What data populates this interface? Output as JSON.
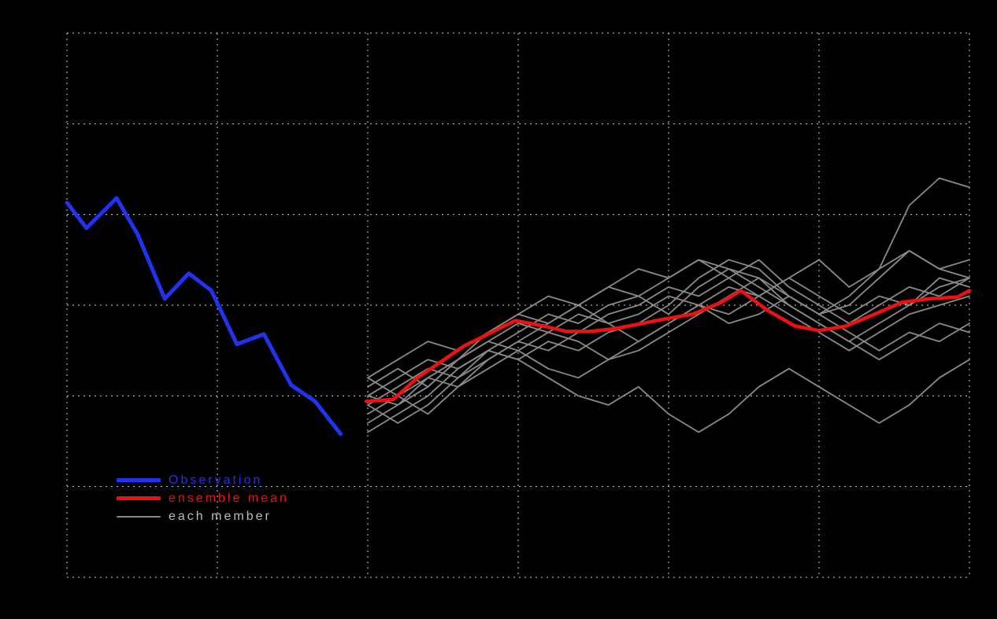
{
  "page": {
    "background": "#000000"
  },
  "chart_data": {
    "type": "line",
    "title": "",
    "xlabel": "",
    "ylabel": "",
    "xlim": [
      0,
      6
    ],
    "ylim": [
      0,
      6
    ],
    "grid": "on",
    "grid_style": "dotted",
    "grid_color": "#cfcfcf",
    "background": "#000000",
    "x_gridlines": [
      0,
      1,
      2,
      3,
      4,
      5,
      6
    ],
    "y_gridlines": [
      0,
      1,
      2,
      3,
      4,
      5,
      6
    ],
    "legend_position": "lower-left-inside",
    "legend": [
      {
        "label": "Observation",
        "line_color": "#2233ee",
        "text_color": "#2233ee",
        "line_width": 5
      },
      {
        "label": "ensemble mean",
        "line_color": "#ee1111",
        "text_color": "#ee1111",
        "line_width": 5
      },
      {
        "label": "each member",
        "line_color": "#8a8a8a",
        "text_color": "#bdbdbd",
        "line_width": 2
      }
    ],
    "observation": {
      "name": "Observation",
      "color": "#2233ee",
      "width": 5,
      "x": [
        0,
        0.13,
        0.33,
        0.47,
        0.65,
        0.81,
        0.96,
        1.13,
        1.31,
        1.49,
        1.65,
        1.82
      ],
      "y": [
        4.13,
        3.85,
        4.18,
        3.78,
        3.07,
        3.35,
        3.16,
        2.57,
        2.68,
        2.12,
        1.94,
        1.58
      ]
    },
    "ensemble_mean": {
      "name": "ensemble mean",
      "color": "#ee1111",
      "width": 4.5,
      "x": [
        1.99,
        2.17,
        2.33,
        2.49,
        2.64,
        2.8,
        2.98,
        3.17,
        3.32,
        3.48,
        3.64,
        3.8,
        3.98,
        4.16,
        4.35,
        4.48,
        4.66,
        4.84,
        5.0,
        5.18,
        5.37,
        5.55,
        5.73,
        5.92,
        6.0
      ],
      "y": [
        1.94,
        1.96,
        2.2,
        2.38,
        2.55,
        2.68,
        2.83,
        2.77,
        2.71,
        2.71,
        2.74,
        2.79,
        2.85,
        2.9,
        3.03,
        3.16,
        2.94,
        2.77,
        2.72,
        2.77,
        2.9,
        3.03,
        3.07,
        3.09,
        3.16
      ]
    },
    "members": {
      "name": "each member",
      "color": "#8a8a8a",
      "width": 1.8,
      "x": [
        2.0,
        2.2,
        2.4,
        2.6,
        2.8,
        3.0,
        3.2,
        3.4,
        3.6,
        3.8,
        4.0,
        4.2,
        4.4,
        4.6,
        4.8,
        5.0,
        5.2,
        5.4,
        5.6,
        5.8,
        6.0
      ],
      "values": [
        [
          1.9,
          2.1,
          2.3,
          2.2,
          2.5,
          2.7,
          2.9,
          2.8,
          3.0,
          3.1,
          2.9,
          3.2,
          3.4,
          3.3,
          3.1,
          2.9,
          3.0,
          3.3,
          3.6,
          3.4,
          3.3
        ],
        [
          2.2,
          2.0,
          1.8,
          2.1,
          2.4,
          2.6,
          2.5,
          2.7,
          2.9,
          3.0,
          3.2,
          3.1,
          3.3,
          3.5,
          3.2,
          3.0,
          2.8,
          3.0,
          3.2,
          3.1,
          3.3
        ],
        [
          1.6,
          1.8,
          2.0,
          2.3,
          2.5,
          2.4,
          2.6,
          2.5,
          2.7,
          2.8,
          3.0,
          3.3,
          3.5,
          3.4,
          3.1,
          2.9,
          3.1,
          3.4,
          4.1,
          4.4,
          4.3
        ],
        [
          2.0,
          1.9,
          2.2,
          2.4,
          2.6,
          2.8,
          2.7,
          2.9,
          2.8,
          2.6,
          2.8,
          3.0,
          3.2,
          3.1,
          2.9,
          2.7,
          2.5,
          2.7,
          2.9,
          3.0,
          3.1
        ],
        [
          1.8,
          2.0,
          2.2,
          2.1,
          2.3,
          2.5,
          2.7,
          2.6,
          2.4,
          2.5,
          2.7,
          2.9,
          3.1,
          3.3,
          3.0,
          2.8,
          2.6,
          2.4,
          2.6,
          2.8,
          2.7
        ],
        [
          2.1,
          2.3,
          2.1,
          2.4,
          2.6,
          2.5,
          2.3,
          2.2,
          2.4,
          2.6,
          2.8,
          3.0,
          2.9,
          3.1,
          3.3,
          3.1,
          2.9,
          3.1,
          3.0,
          3.2,
          3.3
        ],
        [
          1.7,
          1.9,
          2.1,
          2.4,
          2.7,
          2.9,
          3.1,
          3.0,
          2.8,
          2.9,
          3.1,
          3.0,
          2.8,
          2.9,
          3.1,
          2.9,
          2.7,
          2.5,
          2.7,
          2.6,
          2.8
        ],
        [
          2.0,
          2.2,
          2.4,
          2.3,
          2.5,
          2.4,
          2.2,
          2.0,
          1.9,
          2.1,
          1.8,
          1.6,
          1.8,
          2.1,
          2.3,
          2.1,
          1.9,
          1.7,
          1.9,
          2.2,
          2.4
        ],
        [
          1.9,
          1.7,
          1.9,
          2.2,
          2.4,
          2.6,
          2.8,
          3.0,
          3.2,
          3.1,
          3.3,
          3.5,
          3.4,
          3.2,
          3.0,
          2.8,
          2.6,
          2.8,
          3.0,
          3.3,
          3.2
        ],
        [
          2.2,
          2.4,
          2.6,
          2.5,
          2.7,
          2.9,
          2.8,
          3.0,
          3.2,
          3.4,
          3.3,
          3.5,
          3.3,
          3.1,
          3.3,
          3.5,
          3.2,
          3.4,
          3.6,
          3.4,
          3.5
        ]
      ]
    }
  }
}
